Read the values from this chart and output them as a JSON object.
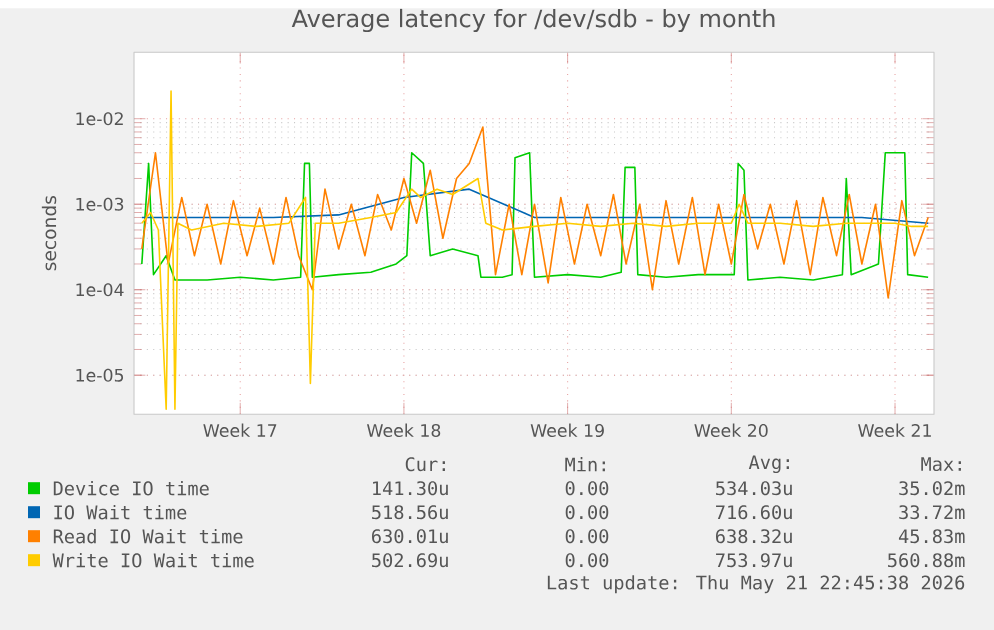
{
  "chart_data": {
    "type": "line",
    "title": "Average latency for /dev/sdb - by month",
    "ylabel": "seconds",
    "log": "y",
    "grid": true,
    "legend": "bottom",
    "xlim": [
      "2026-04-18T23:00",
      "2026-05-23T04:00"
    ],
    "ylim": [
      3.5e-06,
      0.06
    ],
    "xticks": [
      {
        "value": "2026-04-23T12:00",
        "label": "Week 17"
      },
      {
        "value": "2026-04-30T12:00",
        "label": "Week 18"
      },
      {
        "value": "2026-05-07T12:00",
        "label": "Week 19"
      },
      {
        "value": "2026-05-14T12:00",
        "label": "Week 20"
      },
      {
        "value": "2026-05-21T12:00",
        "label": "Week 21"
      }
    ],
    "yticks": [
      {
        "value": 1e-05,
        "label": "1e-05"
      },
      {
        "value": 0.0001,
        "label": "1e-04"
      },
      {
        "value": 0.001,
        "label": "1e-03"
      },
      {
        "value": 0.01,
        "label": "1e-02"
      }
    ],
    "series": [
      {
        "name": "Device IO time",
        "color": "#00cc00",
        "x": [
          "2026-04-19T07:00",
          "2026-04-19T14:00",
          "2026-04-19T19:00",
          "2026-04-20T08:00",
          "2026-04-20T17:00",
          "2026-04-22T02:00",
          "2026-04-23T12:00",
          "2026-04-24T22:00",
          "2026-04-26T02:00",
          "2026-04-26T06:00",
          "2026-04-26T11:00",
          "2026-04-26T14:00",
          "2026-04-27T17:00",
          "2026-04-29T02:00",
          "2026-04-30T04:00",
          "2026-04-30T15:00",
          "2026-04-30T20:00",
          "2026-05-01T08:00",
          "2026-05-01T15:00",
          "2026-05-02T14:00",
          "2026-05-03T16:00",
          "2026-05-03T19:00",
          "2026-05-04T17:00",
          "2026-05-05T03:00",
          "2026-05-05T06:00",
          "2026-05-05T21:00",
          "2026-05-06T02:00",
          "2026-05-07T12:00",
          "2026-05-08T22:00",
          "2026-05-09T19:00",
          "2026-05-09T23:00",
          "2026-05-10T09:00",
          "2026-05-10T12:00",
          "2026-05-11T17:00",
          "2026-05-13T02:00",
          "2026-05-14T15:00",
          "2026-05-14T19:00",
          "2026-05-15T01:00",
          "2026-05-15T05:00",
          "2026-05-16T14:00",
          "2026-05-18T00:00",
          "2026-05-19T06:00",
          "2026-05-19T10:00",
          "2026-05-19T15:00",
          "2026-05-20T19:00",
          "2026-05-21T02:00",
          "2026-05-21T22:00",
          "2026-05-22T01:00",
          "2026-05-22T22:00"
        ],
        "values": [
          0.0002,
          0.003,
          0.00015,
          0.00025,
          0.00013,
          0.00013,
          0.00014,
          0.00013,
          0.00014,
          0.003,
          0.003,
          0.00014,
          0.00015,
          0.00016,
          0.0002,
          0.00025,
          0.004,
          0.003,
          0.00025,
          0.0003,
          0.00025,
          0.00014,
          0.00014,
          0.00015,
          0.0035,
          0.004,
          0.00014,
          0.00015,
          0.00014,
          0.00016,
          0.0027,
          0.0027,
          0.00015,
          0.00014,
          0.00015,
          0.00015,
          0.003,
          0.0025,
          0.00013,
          0.00014,
          0.00013,
          0.00015,
          0.002,
          0.00015,
          0.0002,
          0.004,
          0.004,
          0.00015,
          0.00014
        ]
      },
      {
        "name": "IO Wait time",
        "color": "#0066b3",
        "x": [
          "2026-04-19T07:00",
          "2026-04-22T02:00",
          "2026-04-24T22:00",
          "2026-04-27T17:00",
          "2026-04-30T12:00",
          "2026-05-03T07:00",
          "2026-05-06T02:00",
          "2026-05-08T22:00",
          "2026-05-11T17:00",
          "2026-05-14T12:00",
          "2026-05-17T07:00",
          "2026-05-20T02:00",
          "2026-05-22T22:00"
        ],
        "values": [
          0.0007,
          0.0007,
          0.0007,
          0.00075,
          0.0012,
          0.0015,
          0.0007,
          0.0007,
          0.0007,
          0.0007,
          0.0007,
          0.0007,
          0.0006
        ]
      },
      {
        "name": "Read IO Wait time",
        "color": "#ff8000",
        "x": [
          "2026-04-19T07:00",
          "2026-04-19T21:00",
          "2026-04-20T10:00",
          "2026-04-21T00:00",
          "2026-04-21T13:00",
          "2026-04-22T02:00",
          "2026-04-22T16:00",
          "2026-04-23T05:00",
          "2026-04-23T19:00",
          "2026-04-24T08:00",
          "2026-04-24T22:00",
          "2026-04-25T11:00",
          "2026-04-26T00:00",
          "2026-04-26T14:00",
          "2026-04-27T03:00",
          "2026-04-27T17:00",
          "2026-04-28T06:00",
          "2026-04-28T20:00",
          "2026-04-29T09:00",
          "2026-04-29T23:00",
          "2026-04-30T12:00",
          "2026-05-01T01:00",
          "2026-05-01T15:00",
          "2026-05-02T04:00",
          "2026-05-02T18:00",
          "2026-05-03T07:00",
          "2026-05-03T21:00",
          "2026-05-04T10:00",
          "2026-05-05T00:00",
          "2026-05-05T13:00",
          "2026-05-06T02:00",
          "2026-05-06T16:00",
          "2026-05-07T05:00",
          "2026-05-07T19:00",
          "2026-05-08T08:00",
          "2026-05-08T22:00",
          "2026-05-09T11:00",
          "2026-05-10T00:00",
          "2026-05-10T14:00",
          "2026-05-11T03:00",
          "2026-05-11T17:00",
          "2026-05-12T06:00",
          "2026-05-12T20:00",
          "2026-05-13T09:00",
          "2026-05-13T23:00",
          "2026-05-14T12:00",
          "2026-05-15T01:00",
          "2026-05-15T15:00",
          "2026-05-16T04:00",
          "2026-05-16T18:00",
          "2026-05-17T07:00",
          "2026-05-17T21:00",
          "2026-05-18T10:00",
          "2026-05-19T00:00",
          "2026-05-19T13:00",
          "2026-05-20T02:00",
          "2026-05-20T16:00",
          "2026-05-21T05:00",
          "2026-05-21T19:00",
          "2026-05-22T08:00",
          "2026-05-22T22:00"
        ],
        "values": [
          0.0003,
          0.004,
          0.0002,
          0.0012,
          0.00025,
          0.001,
          0.0002,
          0.0011,
          0.00025,
          0.0009,
          0.0002,
          0.0012,
          0.00025,
          0.0001,
          0.0015,
          0.0003,
          0.001,
          0.00025,
          0.0013,
          0.0005,
          0.002,
          0.0006,
          0.0025,
          0.0004,
          0.002,
          0.003,
          0.008,
          0.00015,
          0.001,
          0.00015,
          0.001,
          0.00012,
          0.0012,
          0.0002,
          0.001,
          0.00025,
          0.0013,
          0.0002,
          0.001,
          0.0001,
          0.0011,
          0.0002,
          0.0012,
          0.00015,
          0.001,
          0.0002,
          0.0013,
          0.0003,
          0.001,
          0.0002,
          0.0011,
          0.00015,
          0.0012,
          0.00025,
          0.0013,
          0.0002,
          0.001,
          8e-05,
          0.0011,
          0.00025,
          0.0007
        ]
      },
      {
        "name": "Write IO Wait time",
        "color": "#ffcc00",
        "x": [
          "2026-04-19T07:00",
          "2026-04-19T16:00",
          "2026-04-20T00:00",
          "2026-04-20T08:00",
          "2026-04-20T13:00",
          "2026-04-20T17:00",
          "2026-04-20T20:00",
          "2026-04-21T10:00",
          "2026-04-22T19:00",
          "2026-04-24T05:00",
          "2026-04-25T14:00",
          "2026-04-26T07:00",
          "2026-04-26T12:00",
          "2026-04-26T17:00",
          "2026-04-27T17:00",
          "2026-04-29T02:00",
          "2026-04-30T04:00",
          "2026-04-30T20:00",
          "2026-05-01T05:00",
          "2026-05-01T22:00",
          "2026-05-02T14:00",
          "2026-05-03T16:00",
          "2026-05-04T00:00",
          "2026-05-04T17:00",
          "2026-05-06T02:00",
          "2026-05-07T12:00",
          "2026-05-08T22:00",
          "2026-05-10T07:00",
          "2026-05-11T17:00",
          "2026-05-13T02:00",
          "2026-05-14T12:00",
          "2026-05-14T20:00",
          "2026-05-15T05:00",
          "2026-05-16T14:00",
          "2026-05-18T00:00",
          "2026-05-19T10:00",
          "2026-05-20T19:00",
          "2026-05-21T12:00",
          "2026-05-22T05:00",
          "2026-05-22T22:00"
        ],
        "values": [
          0.0006,
          0.0008,
          0.0005,
          4e-06,
          0.021,
          4e-06,
          0.0006,
          0.0005,
          0.0006,
          0.00055,
          0.0006,
          0.0012,
          8e-06,
          0.0006,
          0.0006,
          0.0007,
          0.0008,
          0.0015,
          0.0012,
          0.0015,
          0.0013,
          0.002,
          0.0006,
          0.0005,
          0.00055,
          0.0006,
          0.00055,
          0.0006,
          0.00055,
          0.0006,
          0.0006,
          0.001,
          0.0006,
          0.0006,
          0.00055,
          0.0006,
          0.0006,
          0.0006,
          0.00055,
          0.00055
        ]
      }
    ],
    "annotations": [
      "Cur:",
      "Min:",
      "Avg:",
      "Max:",
      "141.30u",
      "0.00",
      "534.03u",
      "35.02m",
      "518.56u",
      "0.00",
      "716.60u",
      "33.72m",
      "630.01u",
      "0.00",
      "638.32u",
      "45.83m",
      "502.69u",
      "0.00",
      "753.97u",
      "560.88m",
      "Last update: Thu May 21 22:45:38 2026"
    ]
  }
}
